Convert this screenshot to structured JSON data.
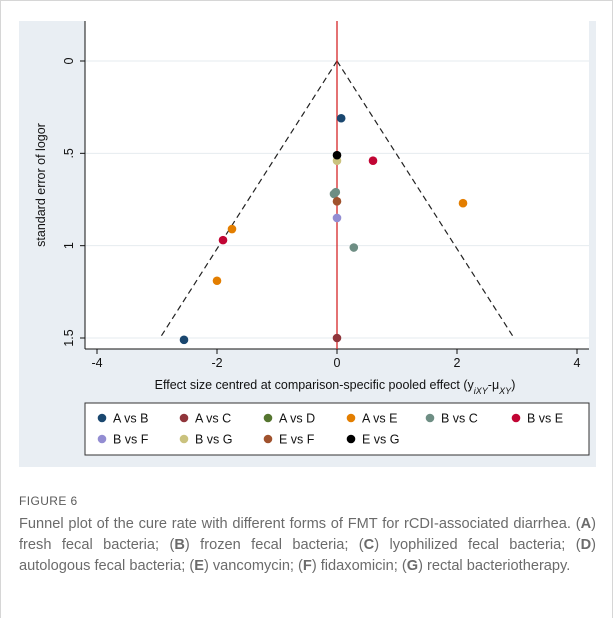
{
  "figure": {
    "label": "FIGURE 6",
    "caption_parts": [
      {
        "t": "Funnel plot of the cure rate with different forms of FMT for rCDI-associated diarrhea. ("
      },
      {
        "t": "A",
        "b": true
      },
      {
        "t": ") fresh fecal bacteria; ("
      },
      {
        "t": "B",
        "b": true
      },
      {
        "t": ") frozen fecal bacteria; ("
      },
      {
        "t": "C",
        "b": true
      },
      {
        "t": ") lyophilized fecal bacteria; ("
      },
      {
        "t": "D",
        "b": true
      },
      {
        "t": ") autologous fecal bacteria; ("
      },
      {
        "t": "E",
        "b": true
      },
      {
        "t": ") vancomycin; ("
      },
      {
        "t": "F",
        "b": true
      },
      {
        "t": ") fidaxomicin; ("
      },
      {
        "t": "G",
        "b": true
      },
      {
        "t": ") rectal bacteriotherapy."
      }
    ]
  },
  "chart_data": {
    "type": "scatter",
    "xlabel": "Effect size centred at comparison-specific pooled effect (y",
    "xlabel_sub": "iXY",
    "xlabel_mid": "-μ",
    "xlabel_sub2": "XY",
    "xlabel_end": ")",
    "ylabel": "standard error of logor",
    "xlim": [
      -4.2,
      4.2
    ],
    "ylim": [
      0,
      1.55
    ],
    "y_reversed": true,
    "xticks": [
      -4,
      -2,
      0,
      2,
      4
    ],
    "xtick_labels": [
      "-4",
      "-2",
      "0",
      "2",
      "4"
    ],
    "yticks": [
      0,
      0.5,
      1,
      1.5
    ],
    "ytick_labels": [
      "0",
      ".5",
      "1",
      "1.5"
    ],
    "grid": "horizontal",
    "legend_position": "bottom",
    "reference_line": {
      "x": 0,
      "color": "#d62728"
    },
    "funnel": {
      "apex": [
        0,
        0
      ],
      "left_end": [
        -2.95,
        1.5
      ],
      "right_end": [
        2.95,
        1.5
      ]
    },
    "series": [
      {
        "name": "A vs B",
        "color": "#1a476f",
        "points": [
          [
            0.07,
            0.31
          ],
          [
            -2.55,
            1.51
          ]
        ]
      },
      {
        "name": "A vs C",
        "color": "#90353b",
        "points": [
          [
            0.0,
            1.5
          ]
        ]
      },
      {
        "name": "A vs D",
        "color": "#55752f",
        "points": []
      },
      {
        "name": "A vs E",
        "color": "#e37e00",
        "points": [
          [
            2.1,
            0.77
          ],
          [
            -1.75,
            0.91
          ],
          [
            -2.0,
            1.19
          ]
        ]
      },
      {
        "name": "B vs C",
        "color": "#6e8e84",
        "points": [
          [
            -0.05,
            0.72
          ],
          [
            -0.02,
            0.71
          ],
          [
            0.28,
            1.01
          ]
        ]
      },
      {
        "name": "B vs E",
        "color": "#c10534",
        "points": [
          [
            0.6,
            0.54
          ],
          [
            -1.9,
            0.97
          ]
        ]
      },
      {
        "name": "B vs F",
        "color": "#938dd2",
        "points": [
          [
            0.0,
            0.85
          ]
        ]
      },
      {
        "name": "B vs G",
        "color": "#cac27e",
        "points": [
          [
            0.0,
            0.54
          ]
        ]
      },
      {
        "name": "E vs F",
        "color": "#a0522d",
        "points": [
          [
            0.0,
            0.76
          ]
        ]
      },
      {
        "name": "E vs G",
        "color": "#000000",
        "points": [
          [
            0.0,
            0.51
          ]
        ]
      }
    ]
  }
}
